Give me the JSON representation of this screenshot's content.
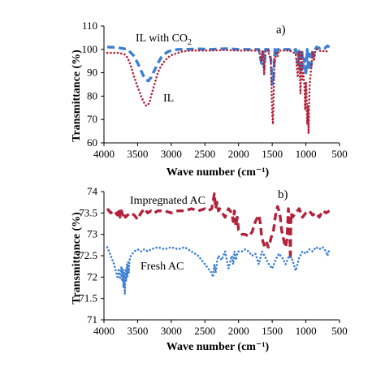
{
  "chart_data": [
    {
      "type": "line",
      "panel_label": "a)",
      "xlabel": "Wave number (cm⁻¹)",
      "ylabel": "Transmittance (%)",
      "xlim": [
        4000,
        500
      ],
      "x_reversed": true,
      "ylim": [
        60,
        110
      ],
      "x_ticks": [
        "4000",
        "3500",
        "3000",
        "2500",
        "2000",
        "1500",
        "1000",
        "500"
      ],
      "y_ticks": [
        "60",
        "70",
        "80",
        "90",
        "100",
        "110"
      ],
      "annotations": [
        {
          "text": "IL with CO",
          "sub": "2"
        },
        {
          "text": "IL"
        }
      ],
      "series": [
        {
          "name": "IL with CO2",
          "color": "#3c7fd4",
          "style": "dashed",
          "x": [
            3950,
            3800,
            3650,
            3550,
            3480,
            3420,
            3380,
            3340,
            3300,
            3250,
            3200,
            3150,
            3100,
            3050,
            3000,
            2900,
            2800,
            2600,
            2400,
            2200,
            2000,
            1800,
            1700,
            1660,
            1640,
            1620,
            1600,
            1560,
            1520,
            1500,
            1480,
            1460,
            1440,
            1420,
            1400,
            1350,
            1300,
            1250,
            1200,
            1150,
            1120,
            1100,
            1080,
            1060,
            1040,
            1020,
            1000,
            980,
            960,
            940,
            920,
            900,
            880,
            860,
            840,
            800,
            760,
            720,
            680,
            650
          ],
          "y": [
            101,
            100.8,
            100,
            97,
            93,
            89,
            87,
            86.5,
            88,
            91,
            94,
            96.5,
            98,
            99,
            99.5,
            100,
            100,
            100.2,
            100,
            100.3,
            100,
            100,
            100,
            94,
            100,
            92,
            100,
            100,
            96,
            85,
            88,
            100,
            98,
            100,
            100,
            100,
            100,
            100,
            99,
            100,
            94,
            100,
            90,
            100,
            92,
            96,
            89,
            100,
            91,
            98,
            93,
            100,
            97,
            100,
            101,
            100.5,
            101,
            100.5,
            101.5,
            101
          ]
        },
        {
          "name": "IL",
          "color": "#b2223a",
          "style": "dotted",
          "x": [
            3950,
            3800,
            3700,
            3650,
            3600,
            3550,
            3500,
            3450,
            3400,
            3380,
            3350,
            3320,
            3300,
            3250,
            3200,
            3150,
            3100,
            3050,
            3000,
            2950,
            2900,
            2850,
            2800,
            2700,
            2600,
            2400,
            2200,
            2000,
            1800,
            1700,
            1660,
            1640,
            1620,
            1600,
            1560,
            1520,
            1500,
            1490,
            1480,
            1470,
            1460,
            1440,
            1420,
            1400,
            1350,
            1300,
            1250,
            1200,
            1150,
            1120,
            1100,
            1080,
            1060,
            1050,
            1040,
            1020,
            1010,
            1000,
            990,
            980,
            970,
            960,
            950,
            940,
            920,
            900,
            880,
            860,
            840,
            800,
            760,
            720,
            680,
            650
          ],
          "y": [
            98.5,
            98.5,
            98,
            96.5,
            93,
            88,
            84,
            80,
            77,
            76,
            76,
            77.5,
            80,
            85,
            90,
            93,
            95,
            96.5,
            97.5,
            98,
            98.5,
            99,
            99.2,
            99.5,
            99.5,
            99.5,
            99.7,
            99.5,
            99.5,
            99.5,
            95,
            99.5,
            89,
            99.5,
            99.5,
            95,
            73,
            68,
            78,
            96,
            95,
            99,
            97,
            99.5,
            99.5,
            99.5,
            99.5,
            99,
            98,
            88,
            99,
            81,
            99,
            87,
            90,
            84,
            74,
            86,
            82,
            68,
            76,
            64,
            79,
            86,
            92,
            99,
            95,
            99,
            100,
            99.5,
            99,
            99.5,
            99,
            99
          ]
        }
      ]
    },
    {
      "type": "line",
      "panel_label": "b)",
      "xlabel": "Wave number (cm⁻¹)",
      "ylabel": "Transmittance (%)",
      "xlim": [
        4000,
        500
      ],
      "x_reversed": true,
      "ylim": [
        71,
        74
      ],
      "x_ticks": [
        "4000",
        "3500",
        "3000",
        "2500",
        "2000",
        "1500",
        "1000",
        "500"
      ],
      "y_ticks": [
        "71",
        "71.5",
        "72",
        "72.5",
        "73",
        "73.5",
        "74"
      ],
      "annotations": [
        {
          "text": "Impregnated AC"
        },
        {
          "text": "Fresh AC"
        }
      ],
      "series": [
        {
          "name": "Impregnated AC",
          "color": "#b2223a",
          "style": "dashed",
          "x": [
            3950,
            3900,
            3850,
            3800,
            3780,
            3760,
            3740,
            3720,
            3700,
            3680,
            3650,
            3600,
            3550,
            3500,
            3450,
            3400,
            3350,
            3300,
            3250,
            3200,
            3100,
            3000,
            2900,
            2800,
            2700,
            2600,
            2500,
            2450,
            2400,
            2380,
            2360,
            2340,
            2320,
            2300,
            2280,
            2260,
            2240,
            2200,
            2150,
            2100,
            2080,
            2060,
            2040,
            2020,
            2000,
            1950,
            1900,
            1850,
            1800,
            1750,
            1700,
            1680,
            1660,
            1640,
            1620,
            1600,
            1580,
            1560,
            1540,
            1520,
            1500,
            1480,
            1460,
            1440,
            1420,
            1400,
            1380,
            1360,
            1340,
            1320,
            1300,
            1280,
            1260,
            1250,
            1240,
            1230,
            1220,
            1200,
            1150,
            1100,
            1050,
            1000,
            950,
            900,
            850,
            800,
            750,
            700,
            650
          ],
          "y": [
            73.6,
            73.5,
            73.55,
            73.45,
            73.6,
            73.4,
            73.55,
            73.45,
            73.5,
            73.4,
            73.45,
            73.5,
            73.45,
            73.35,
            73.5,
            73.6,
            73.5,
            73.55,
            73.5,
            73.55,
            73.55,
            73.5,
            73.55,
            73.55,
            73.6,
            73.55,
            73.6,
            73.55,
            73.6,
            73.75,
            73.95,
            73.6,
            73.75,
            73.55,
            73.6,
            73.55,
            73.5,
            73.4,
            73.6,
            73.5,
            73.3,
            73.55,
            73.2,
            73.4,
            73.1,
            73.0,
            73.0,
            72.95,
            73.05,
            73.3,
            73.45,
            73.3,
            73.0,
            72.85,
            72.75,
            72.7,
            72.8,
            72.7,
            72.75,
            72.9,
            73.0,
            73.1,
            73.35,
            73.55,
            73.65,
            73.55,
            73.4,
            73.1,
            72.95,
            72.8,
            72.7,
            72.9,
            73.6,
            73.4,
            73.1,
            72.4,
            73.5,
            73.4,
            73.5,
            73.6,
            73.4,
            73.5,
            73.55,
            73.45,
            73.5,
            73.4,
            73.55,
            73.5,
            73.55
          ]
        },
        {
          "name": "Fresh AC",
          "color": "#3c7fd4",
          "style": "dotted",
          "x": [
            3950,
            3900,
            3850,
            3800,
            3780,
            3760,
            3740,
            3730,
            3720,
            3710,
            3700,
            3690,
            3680,
            3670,
            3660,
            3650,
            3640,
            3630,
            3620,
            3600,
            3550,
            3500,
            3450,
            3400,
            3350,
            3300,
            3200,
            3100,
            3000,
            2900,
            2800,
            2700,
            2600,
            2500,
            2450,
            2400,
            2380,
            2360,
            2340,
            2320,
            2300,
            2250,
            2200,
            2150,
            2100,
            2080,
            2060,
            2040,
            2020,
            2000,
            1950,
            1900,
            1850,
            1800,
            1750,
            1700,
            1650,
            1600,
            1550,
            1500,
            1450,
            1400,
            1350,
            1300,
            1250,
            1200,
            1150,
            1100,
            1050,
            1000,
            950,
            900,
            850,
            800,
            750,
            700,
            680,
            650
          ],
          "y": [
            72.7,
            72.5,
            72.3,
            72.0,
            72.2,
            71.95,
            72.25,
            71.9,
            72.2,
            71.75,
            72.1,
            71.6,
            72.2,
            71.9,
            72.3,
            72.0,
            72.35,
            72.1,
            72.4,
            72.5,
            72.6,
            72.65,
            72.6,
            72.65,
            72.6,
            72.65,
            72.7,
            72.65,
            72.7,
            72.65,
            72.7,
            72.6,
            72.5,
            72.3,
            72.2,
            72.1,
            72.0,
            72.3,
            72.1,
            72.35,
            72.5,
            72.4,
            72.6,
            72.2,
            72.5,
            72.3,
            72.6,
            72.4,
            72.55,
            72.6,
            72.6,
            72.65,
            72.6,
            72.5,
            72.55,
            72.3,
            72.6,
            72.45,
            72.3,
            72.2,
            72.4,
            72.55,
            72.45,
            72.3,
            72.5,
            72.4,
            72.15,
            72.45,
            72.6,
            72.55,
            72.65,
            72.6,
            72.7,
            72.65,
            72.7,
            72.6,
            72.5,
            72.65
          ]
        }
      ]
    }
  ]
}
